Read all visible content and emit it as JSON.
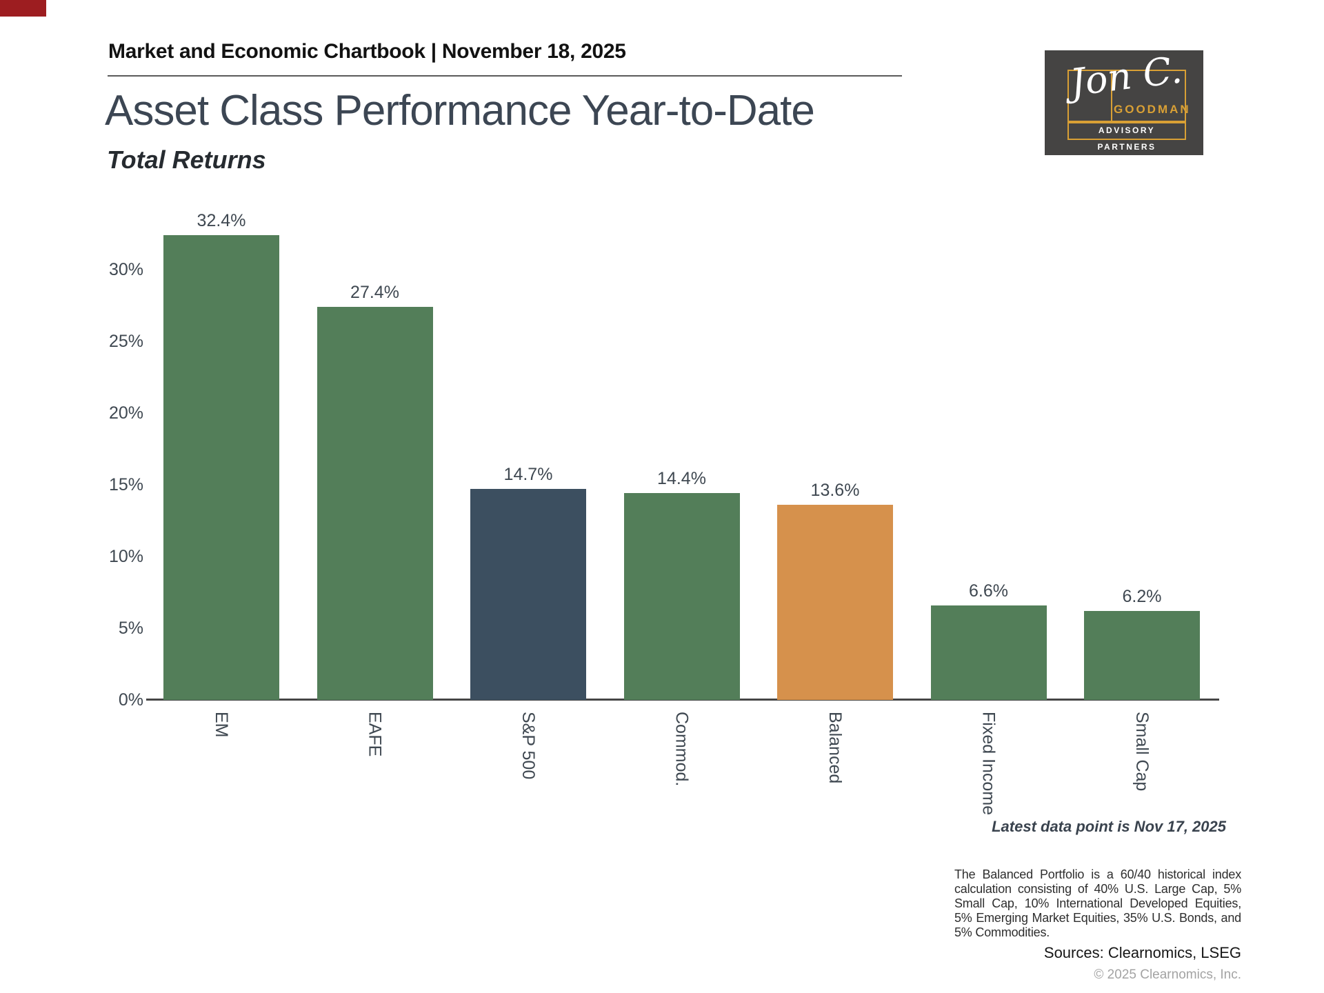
{
  "header": {
    "kicker": "Market and Economic Chartbook | November 18, 2025"
  },
  "title": "Asset Class Performance Year-to-Date",
  "subtitle": "Total Returns",
  "logo": {
    "signature": "Jon C.",
    "name": "GOODMAN",
    "tagline": "ADVISORY PARTNERS",
    "background_color": "#454443",
    "gold_color": "#d9a035"
  },
  "chart_data": {
    "type": "bar",
    "title": "Asset Class Performance Year-to-Date",
    "subtitle": "Total Returns",
    "categories": [
      "EM",
      "EAFE",
      "S&P 500",
      "Commod.",
      "Balanced",
      "Fixed Income",
      "Small Cap"
    ],
    "values": [
      32.4,
      27.4,
      14.7,
      14.4,
      13.6,
      6.6,
      6.2
    ],
    "value_labels": [
      "32.4%",
      "27.4%",
      "14.7%",
      "14.4%",
      "13.6%",
      "6.6%",
      "6.2%"
    ],
    "bar_colors": [
      "#537e59",
      "#537e59",
      "#3c4f60",
      "#537e59",
      "#d6914c",
      "#537e59",
      "#537e59"
    ],
    "xlabel": "",
    "ylabel": "",
    "ylim": [
      0,
      33.5
    ],
    "yticks": [
      0,
      5,
      10,
      15,
      20,
      25,
      30
    ],
    "ytick_labels": [
      "0%",
      "5%",
      "10%",
      "15%",
      "20%",
      "25%",
      "30%"
    ],
    "grid": false,
    "legend": false,
    "value_labels_position": "above-bars",
    "category_label_orientation": "vertical-top-to-bottom"
  },
  "notes": {
    "latest": "Latest data point is Nov 17, 2025",
    "footnote": "The Balanced Portfolio is a 60/40 historical index calculation consisting of 40% U.S. Large Cap, 5% Small Cap, 10% International Developed Equities, 5% Emerging Market Equities, 35% U.S. Bonds, and 5% Commodities.",
    "sources": "Sources: Clearnomics, LSEG",
    "copyright": "© 2025 Clearnomics, Inc."
  },
  "accent_color": "#9d1d20"
}
